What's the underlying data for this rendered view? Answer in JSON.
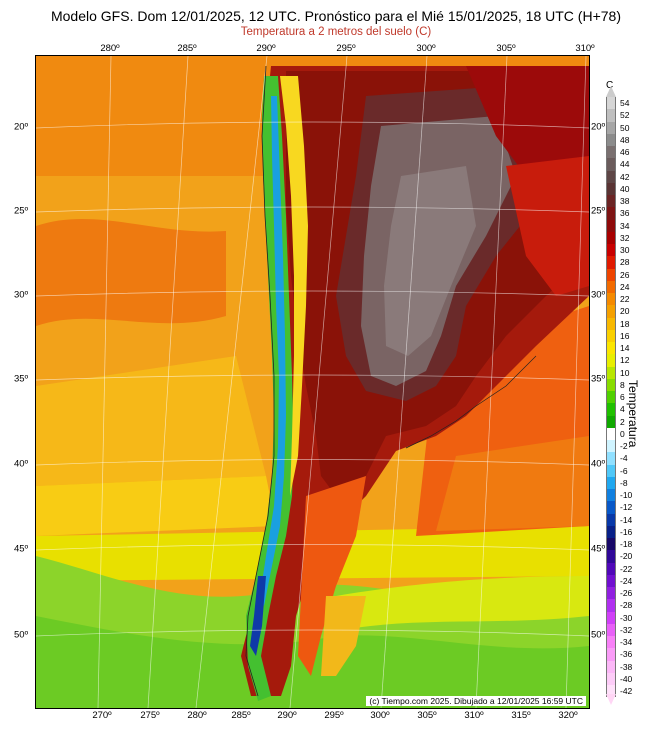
{
  "title": "Modelo GFS. Dom 12/01/2025, 12 UTC. Pronóstico para el Mié 15/01/2025, 18 UTC (H+78)",
  "subtitle": "Temperatura a 2 metros del suelo (C)",
  "credit": "(c) Tiempo.com 2025. Dibujado a 12/01/2025 16:59 UTC",
  "top_ticks": [
    "280º",
    "285º",
    "290º",
    "295º",
    "300º",
    "305º",
    "310º"
  ],
  "bottom_ticks": [
    "270º",
    "275º",
    "280º",
    "285º",
    "290º",
    "295º",
    "300º",
    "305º",
    "310º",
    "315º",
    "320º"
  ],
  "left_ticks": [
    "20º",
    "25º",
    "30º",
    "35º",
    "40º",
    "45º",
    "50º"
  ],
  "right_ticks": [
    "20º",
    "25º",
    "30º",
    "35º",
    "40º",
    "45º",
    "50º"
  ],
  "colorbar": {
    "unit": "C",
    "label": "Temperatura",
    "levels": [
      "54",
      "52",
      "50",
      "48",
      "46",
      "44",
      "42",
      "40",
      "38",
      "36",
      "34",
      "32",
      "30",
      "28",
      "26",
      "24",
      "22",
      "20",
      "18",
      "16",
      "14",
      "12",
      "10",
      "8",
      "6",
      "4",
      "2",
      "0",
      "-2",
      "-4",
      "-6",
      "-8",
      "-10",
      "-12",
      "-14",
      "-16",
      "-18",
      "-20",
      "-22",
      "-24",
      "-26",
      "-28",
      "-30",
      "-32",
      "-34",
      "-36",
      "-38",
      "-40",
      "-42"
    ],
    "colors": [
      "#d6d6d6",
      "#bfbfbf",
      "#a6a6a6",
      "#8c8c8c",
      "#7a7070",
      "#6b5c5c",
      "#5e4646",
      "#5a3434",
      "#6b2424",
      "#7d1414",
      "#8f0a0a",
      "#a80000",
      "#c80000",
      "#e01a00",
      "#ee4400",
      "#f26a00",
      "#f58a00",
      "#f5a000",
      "#f8b800",
      "#fad000",
      "#fce600",
      "#e8ee00",
      "#b8e600",
      "#88dc00",
      "#50d000",
      "#20c000",
      "#10a800",
      "#ffffff",
      "#d0f4ff",
      "#90e0ff",
      "#50c8f8",
      "#20a8f0",
      "#1080e0",
      "#0858c8",
      "#0838a8",
      "#082088",
      "#180868",
      "#300898",
      "#5008b8",
      "#7010d0",
      "#9020e0",
      "#b030f0",
      "#d040f8",
      "#e860f8",
      "#f880f8",
      "#fa9cf8",
      "#fcb8f8",
      "#fdccf8",
      "#ffe0fa"
    ]
  }
}
